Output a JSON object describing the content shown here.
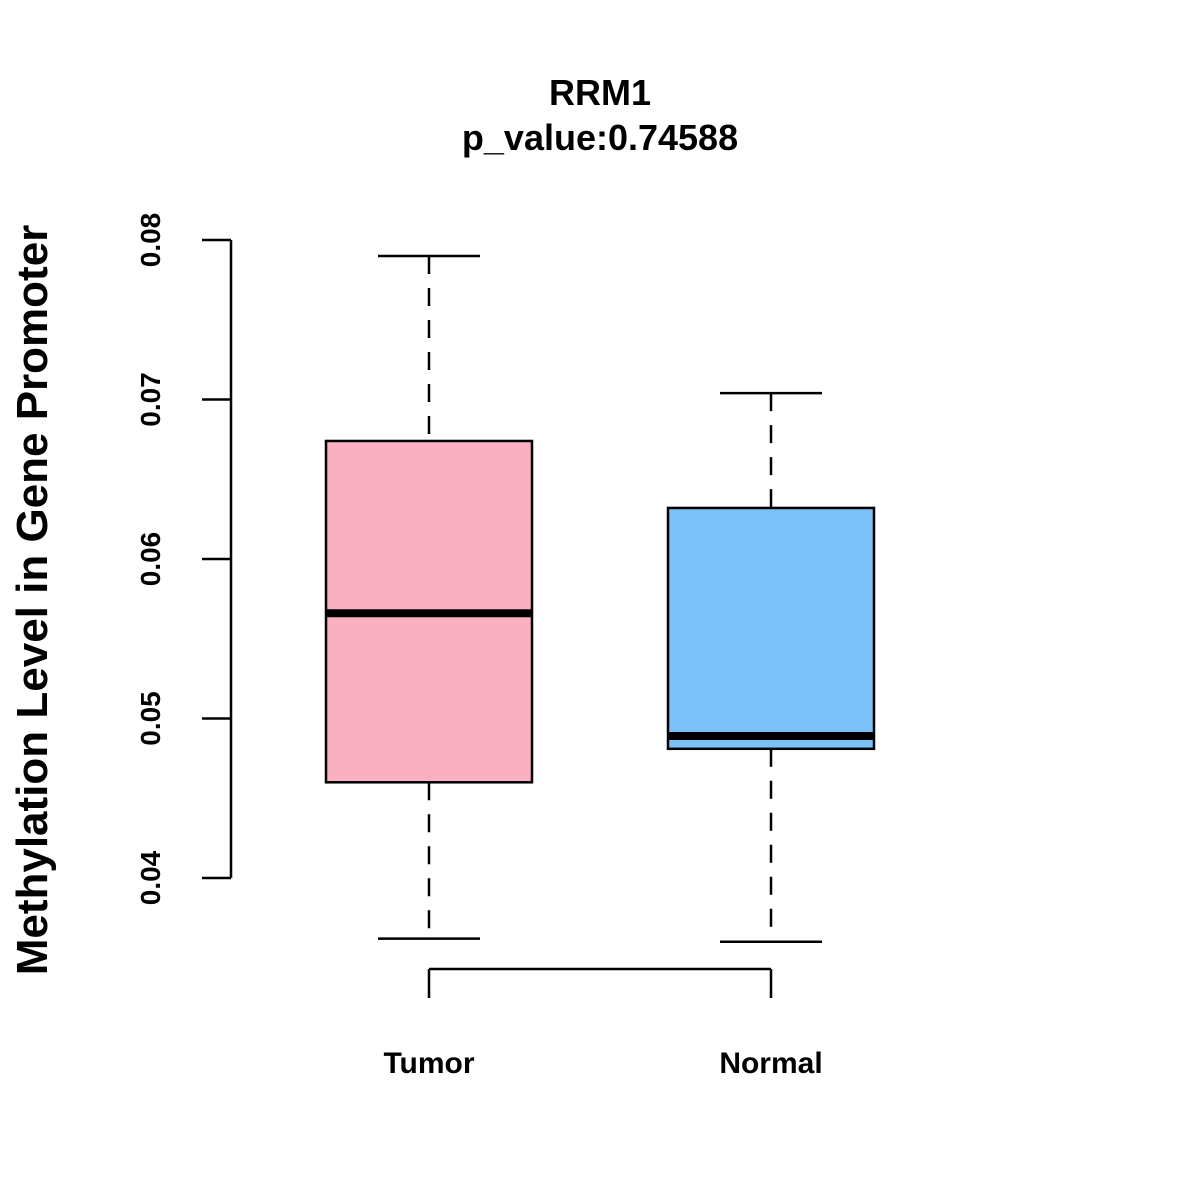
{
  "chart_data": {
    "type": "boxplot",
    "title": "RRM1",
    "subtitle": "p_value:0.74588",
    "xlabel": "",
    "ylabel": "Methylation Level in Gene Promoter",
    "ylim": [
      0.04,
      0.08
    ],
    "yticks": [
      0.04,
      0.05,
      0.06,
      0.07,
      0.08
    ],
    "ytick_labels": [
      "0.04",
      "0.05",
      "0.06",
      "0.07",
      "0.08"
    ],
    "categories": [
      "Tumor",
      "Normal"
    ],
    "boxes": [
      {
        "name": "Tumor",
        "min": 0.0362,
        "q1": 0.046,
        "median": 0.0566,
        "q3": 0.0674,
        "max": 0.079,
        "color": "#fbb0c2"
      },
      {
        "name": "Normal",
        "min": 0.036,
        "q1": 0.0481,
        "median": 0.0489,
        "q3": 0.0632,
        "max": 0.0704,
        "color": "#7ac1f8"
      }
    ],
    "grid": false
  }
}
